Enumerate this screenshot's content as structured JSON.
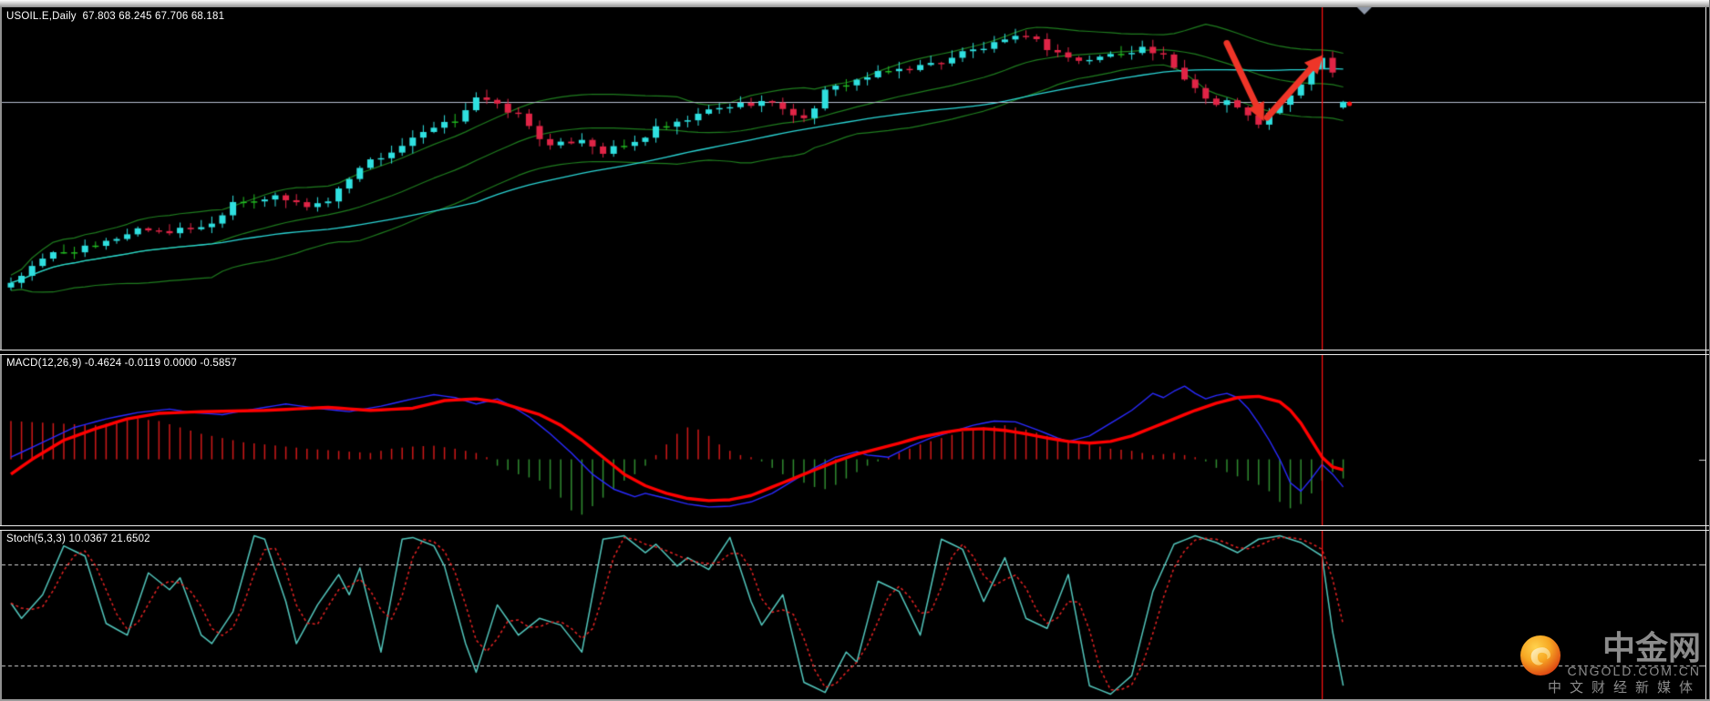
{
  "window": {
    "app_hint": "chart-terminal",
    "background": "#000000"
  },
  "colors": {
    "bull_candle": "#2fe0e0",
    "bear_candle": "#e02446",
    "doji_candle": "#22c022",
    "bollinger": "#1e7c1e",
    "ma_line": "#2ad5d5",
    "price_line": "#b6bdd0",
    "vline": "#ff1010",
    "arrow": "#ee3528",
    "macd_main": "#2929ff",
    "macd_signal": "#ff0000",
    "hist_positive": "#d01818",
    "hist_negative": "#2f8b2f",
    "stoch_k": "#52c6bc",
    "stoch_d": "#e22222",
    "level_dotted": "#d4d4d4",
    "label_text": "#ffffff",
    "divider": "#ececec",
    "shift_marker": "#8f98a8",
    "logo_text": "#8c8c8c",
    "logo_orange_outer": "#d8320f",
    "logo_orange_inner": "#f7a823"
  },
  "main_panel": {
    "label": "USOIL.E,Daily  67.803 68.245 67.706 68.181",
    "symbol": "USOIL.E",
    "timeframe": "Daily"
  },
  "macd_panel": {
    "label": "MACD(12,26,9) -0.4624 -0.0119 0.0000 -0.5857"
  },
  "stoch_panel": {
    "label": "Stoch(5,3,3) 10.0367 21.6502"
  },
  "logo": {
    "brand": "中金网",
    "domain": "CNGOLD.COM.CN",
    "tagline": "中文财经新媒体"
  },
  "chart_data": [
    {
      "type": "candlestick",
      "title": "USOIL.E Daily with Bollinger Bands and MA",
      "num_candles": 127,
      "ohlc_display": {
        "open": 67.803,
        "high": 68.245,
        "low": 67.706,
        "close": 68.181
      },
      "ylim": [
        52.0,
        74.35
      ],
      "close_path_anchors": [
        [
          0,
          56.4
        ],
        [
          4,
          58.3
        ],
        [
          8,
          58.7
        ],
        [
          12,
          59.9
        ],
        [
          15,
          59.7
        ],
        [
          19,
          60.2
        ],
        [
          21,
          61.7
        ],
        [
          25,
          61.9
        ],
        [
          28,
          61.4
        ],
        [
          30,
          61.7
        ],
        [
          33,
          64.0
        ],
        [
          36,
          64.9
        ],
        [
          39,
          66.1
        ],
        [
          42,
          67.0
        ],
        [
          44,
          68.5
        ],
        [
          46,
          67.9
        ],
        [
          48,
          67.3
        ],
        [
          51,
          65.2
        ],
        [
          54,
          65.8
        ],
        [
          56,
          64.9
        ],
        [
          59,
          65.5
        ],
        [
          61,
          66.4
        ],
        [
          63,
          66.7
        ],
        [
          66,
          67.6
        ],
        [
          68,
          67.9
        ],
        [
          71,
          68.2
        ],
        [
          73,
          67.8
        ],
        [
          75,
          67.0
        ],
        [
          77,
          68.8
        ],
        [
          79,
          69.4
        ],
        [
          82,
          70.0
        ],
        [
          84,
          70.3
        ],
        [
          86,
          70.5
        ],
        [
          88,
          70.8
        ],
        [
          90,
          71.4
        ],
        [
          92,
          71.7
        ],
        [
          95,
          72.3
        ],
        [
          96,
          72.6
        ],
        [
          98,
          71.7
        ],
        [
          101,
          70.8
        ],
        [
          103,
          71.1
        ],
        [
          105,
          71.4
        ],
        [
          107,
          71.7
        ],
        [
          109,
          71.1
        ],
        [
          110,
          70.3
        ],
        [
          112,
          69.1
        ],
        [
          114,
          68.0
        ],
        [
          115,
          68.3
        ],
        [
          117,
          67.2
        ],
        [
          118,
          66.8
        ],
        [
          120,
          67.9
        ],
        [
          121,
          68.5
        ],
        [
          122,
          69.4
        ],
        [
          123,
          70.3
        ],
        [
          124,
          71.1
        ],
        [
          125,
          69.9
        ],
        [
          126,
          68.6
        ],
        [
          127,
          68.18
        ]
      ],
      "overlays": {
        "bollinger_period": 20,
        "bollinger_dev": 2,
        "ma_period": 45
      },
      "price_line": 68.181,
      "vline_index": 124,
      "arrows": [
        {
          "direction": "down",
          "from": [
            115.0,
            72.0
          ],
          "to": [
            118.5,
            66.9
          ]
        },
        {
          "direction": "up",
          "from": [
            118.8,
            67.15
          ],
          "to": [
            124.1,
            71.25
          ]
        }
      ],
      "price_dot": {
        "index": 126.6,
        "price": 68.05
      },
      "shift_marker_index": 128.0
    },
    {
      "type": "macd",
      "title": "MACD(12,26,9)",
      "ylim": [
        -1.55,
        2.45
      ],
      "signal_anchors": [
        [
          0,
          -0.35
        ],
        [
          2,
          0
        ],
        [
          5,
          0.45
        ],
        [
          8,
          0.72
        ],
        [
          11,
          0.95
        ],
        [
          14,
          1.08
        ],
        [
          18,
          1.12
        ],
        [
          24,
          1.15
        ],
        [
          30,
          1.22
        ],
        [
          34,
          1.15
        ],
        [
          38,
          1.2
        ],
        [
          41,
          1.38
        ],
        [
          44,
          1.42
        ],
        [
          46,
          1.35
        ],
        [
          48,
          1.2
        ],
        [
          50,
          1.05
        ],
        [
          52,
          0.8
        ],
        [
          54,
          0.45
        ],
        [
          56,
          0.05
        ],
        [
          58,
          -0.35
        ],
        [
          60,
          -0.62
        ],
        [
          62,
          -0.8
        ],
        [
          64,
          -0.92
        ],
        [
          66,
          -0.97
        ],
        [
          68,
          -0.95
        ],
        [
          70,
          -0.85
        ],
        [
          72,
          -0.65
        ],
        [
          74,
          -0.45
        ],
        [
          76,
          -0.25
        ],
        [
          78,
          -0.05
        ],
        [
          80,
          0.12
        ],
        [
          82,
          0.25
        ],
        [
          84,
          0.38
        ],
        [
          86,
          0.52
        ],
        [
          88,
          0.62
        ],
        [
          90,
          0.7
        ],
        [
          92,
          0.72
        ],
        [
          94,
          0.68
        ],
        [
          96,
          0.6
        ],
        [
          98,
          0.5
        ],
        [
          100,
          0.42
        ],
        [
          102,
          0.38
        ],
        [
          104,
          0.42
        ],
        [
          106,
          0.55
        ],
        [
          108,
          0.75
        ],
        [
          110,
          0.95
        ],
        [
          112,
          1.15
        ],
        [
          114,
          1.32
        ],
        [
          116,
          1.45
        ],
        [
          118,
          1.48
        ],
        [
          120,
          1.35
        ],
        [
          121,
          1.15
        ],
        [
          122,
          0.85
        ],
        [
          123,
          0.45
        ],
        [
          124,
          0.05
        ],
        [
          125,
          -0.18
        ],
        [
          126,
          -0.25
        ],
        [
          127,
          -0.3
        ]
      ],
      "macd_anchors": [
        [
          0,
          0.05
        ],
        [
          3,
          0.4
        ],
        [
          6,
          0.75
        ],
        [
          9,
          0.95
        ],
        [
          12,
          1.1
        ],
        [
          15,
          1.18
        ],
        [
          17,
          1.1
        ],
        [
          20,
          1.05
        ],
        [
          23,
          1.18
        ],
        [
          26,
          1.3
        ],
        [
          29,
          1.2
        ],
        [
          32,
          1.12
        ],
        [
          35,
          1.25
        ],
        [
          38,
          1.42
        ],
        [
          40,
          1.52
        ],
        [
          42,
          1.45
        ],
        [
          44,
          1.3
        ],
        [
          46,
          1.42
        ],
        [
          47,
          1.3
        ],
        [
          49,
          1.0
        ],
        [
          51,
          0.6
        ],
        [
          53,
          0.15
        ],
        [
          55,
          -0.35
        ],
        [
          57,
          -0.7
        ],
        [
          59,
          -0.88
        ],
        [
          60,
          -0.8
        ],
        [
          62,
          -0.92
        ],
        [
          64,
          -1.05
        ],
        [
          66,
          -1.12
        ],
        [
          68,
          -1.1
        ],
        [
          70,
          -1.0
        ],
        [
          72,
          -0.8
        ],
        [
          74,
          -0.5
        ],
        [
          76,
          -0.2
        ],
        [
          78,
          0.05
        ],
        [
          80,
          0.18
        ],
        [
          81,
          0.1
        ],
        [
          83,
          0.05
        ],
        [
          85,
          0.3
        ],
        [
          87,
          0.5
        ],
        [
          89,
          0.65
        ],
        [
          91,
          0.8
        ],
        [
          93,
          0.9
        ],
        [
          95,
          0.88
        ],
        [
          97,
          0.7
        ],
        [
          99,
          0.5
        ],
        [
          100,
          0.42
        ],
        [
          102,
          0.55
        ],
        [
          104,
          0.85
        ],
        [
          106,
          1.15
        ],
        [
          107,
          1.35
        ],
        [
          108,
          1.55
        ],
        [
          109,
          1.45
        ],
        [
          110,
          1.6
        ],
        [
          111,
          1.72
        ],
        [
          112,
          1.55
        ],
        [
          113,
          1.42
        ],
        [
          114,
          1.5
        ],
        [
          115,
          1.55
        ],
        [
          116,
          1.45
        ],
        [
          117,
          1.2
        ],
        [
          118,
          0.85
        ],
        [
          119,
          0.45
        ],
        [
          120,
          0.0
        ],
        [
          121,
          -0.55
        ],
        [
          122,
          -0.75
        ],
        [
          123,
          -0.45
        ],
        [
          124,
          -0.12
        ],
        [
          125,
          -0.35
        ],
        [
          126,
          -0.65
        ],
        [
          127,
          -0.9
        ]
      ],
      "hist_anchors": [
        [
          0,
          0.9
        ],
        [
          4,
          0.85
        ],
        [
          8,
          0.8
        ],
        [
          12,
          0.95
        ],
        [
          14,
          0.9
        ],
        [
          16,
          0.75
        ],
        [
          18,
          0.6
        ],
        [
          20,
          0.5
        ],
        [
          22,
          0.4
        ],
        [
          24,
          0.35
        ],
        [
          26,
          0.3
        ],
        [
          28,
          0.25
        ],
        [
          32,
          0.18
        ],
        [
          34,
          0.15
        ],
        [
          36,
          0.25
        ],
        [
          38,
          0.3
        ],
        [
          40,
          0.32
        ],
        [
          42,
          0.25
        ],
        [
          44,
          0.15
        ],
        [
          45,
          0.05
        ],
        [
          46,
          -0.15
        ],
        [
          47,
          -0.25
        ],
        [
          48,
          -0.35
        ],
        [
          50,
          -0.5
        ],
        [
          52,
          -0.9
        ],
        [
          53,
          -1.2
        ],
        [
          54,
          -1.3
        ],
        [
          55,
          -1.1
        ],
        [
          56,
          -0.9
        ],
        [
          57,
          -0.7
        ],
        [
          58,
          -0.5
        ],
        [
          59,
          -0.35
        ],
        [
          60,
          -0.15
        ],
        [
          61,
          0.1
        ],
        [
          62,
          0.35
        ],
        [
          63,
          0.6
        ],
        [
          64,
          0.75
        ],
        [
          65,
          0.7
        ],
        [
          66,
          0.55
        ],
        [
          67,
          0.35
        ],
        [
          68,
          0.2
        ],
        [
          69,
          0.1
        ],
        [
          70,
          0.05
        ],
        [
          71,
          -0.05
        ],
        [
          72,
          -0.2
        ],
        [
          73,
          -0.35
        ],
        [
          74,
          -0.45
        ],
        [
          75,
          -0.55
        ],
        [
          76,
          -0.65
        ],
        [
          77,
          -0.7
        ],
        [
          78,
          -0.6
        ],
        [
          79,
          -0.45
        ],
        [
          80,
          -0.3
        ],
        [
          81,
          -0.15
        ],
        [
          82,
          -0.05
        ],
        [
          83,
          0.05
        ],
        [
          84,
          0.15
        ],
        [
          85,
          0.25
        ],
        [
          86,
          0.35
        ],
        [
          88,
          0.5
        ],
        [
          90,
          0.65
        ],
        [
          92,
          0.75
        ],
        [
          94,
          0.8
        ],
        [
          96,
          0.7
        ],
        [
          98,
          0.55
        ],
        [
          100,
          0.45
        ],
        [
          102,
          0.35
        ],
        [
          104,
          0.25
        ],
        [
          106,
          0.2
        ],
        [
          108,
          0.1
        ],
        [
          110,
          0.15
        ],
        [
          112,
          0.05
        ],
        [
          113,
          -0.05
        ],
        [
          114,
          -0.2
        ],
        [
          115,
          -0.3
        ],
        [
          116,
          -0.4
        ],
        [
          117,
          -0.5
        ],
        [
          118,
          -0.6
        ],
        [
          119,
          -0.75
        ],
        [
          120,
          -1.0
        ],
        [
          121,
          -1.15
        ],
        [
          122,
          -1.05
        ],
        [
          123,
          -0.8
        ],
        [
          124,
          -0.5
        ],
        [
          125,
          -0.3
        ],
        [
          126,
          -0.45
        ],
        [
          127,
          -0.6
        ]
      ],
      "vline_index": 124
    },
    {
      "type": "stochastic",
      "title": "Stoch(5,3,3)",
      "k_value": 10.0367,
      "d_value": 21.6502,
      "levels": [
        80,
        20
      ],
      "ylim": [
        0,
        100
      ],
      "k_anchors": [
        [
          0,
          57
        ],
        [
          1,
          48
        ],
        [
          3,
          62
        ],
        [
          5,
          91
        ],
        [
          7,
          85
        ],
        [
          9,
          45
        ],
        [
          11,
          38
        ],
        [
          13,
          75
        ],
        [
          15,
          65
        ],
        [
          16,
          72
        ],
        [
          18,
          38
        ],
        [
          19,
          33
        ],
        [
          21,
          52
        ],
        [
          23,
          97
        ],
        [
          24,
          95
        ],
        [
          26,
          58
        ],
        [
          27,
          33
        ],
        [
          29,
          56
        ],
        [
          31,
          74
        ],
        [
          32,
          62
        ],
        [
          33,
          78
        ],
        [
          35,
          28
        ],
        [
          37,
          95
        ],
        [
          38,
          96
        ],
        [
          40,
          91
        ],
        [
          41,
          79
        ],
        [
          43,
          33
        ],
        [
          44,
          16
        ],
        [
          46,
          56
        ],
        [
          48,
          38
        ],
        [
          50,
          48
        ],
        [
          52,
          44
        ],
        [
          54,
          28
        ],
        [
          56,
          95
        ],
        [
          58,
          97
        ],
        [
          60,
          87
        ],
        [
          61,
          92
        ],
        [
          63,
          79
        ],
        [
          64,
          84
        ],
        [
          66,
          77
        ],
        [
          68,
          96
        ],
        [
          70,
          58
        ],
        [
          71,
          44
        ],
        [
          73,
          62
        ],
        [
          75,
          10
        ],
        [
          77,
          4
        ],
        [
          79,
          28
        ],
        [
          80,
          22
        ],
        [
          82,
          70
        ],
        [
          84,
          64
        ],
        [
          86,
          38
        ],
        [
          88,
          95
        ],
        [
          90,
          89
        ],
        [
          92,
          58
        ],
        [
          94,
          84
        ],
        [
          96,
          48
        ],
        [
          98,
          42
        ],
        [
          100,
          74
        ],
        [
          102,
          8
        ],
        [
          104,
          3
        ],
        [
          106,
          14
        ],
        [
          108,
          64
        ],
        [
          110,
          92
        ],
        [
          112,
          97
        ],
        [
          114,
          93
        ],
        [
          116,
          87
        ],
        [
          118,
          95
        ],
        [
          120,
          97
        ],
        [
          122,
          93
        ],
        [
          124,
          85
        ],
        [
          125,
          40
        ],
        [
          126,
          8
        ],
        [
          127,
          10
        ]
      ],
      "vline_index": 124
    }
  ]
}
